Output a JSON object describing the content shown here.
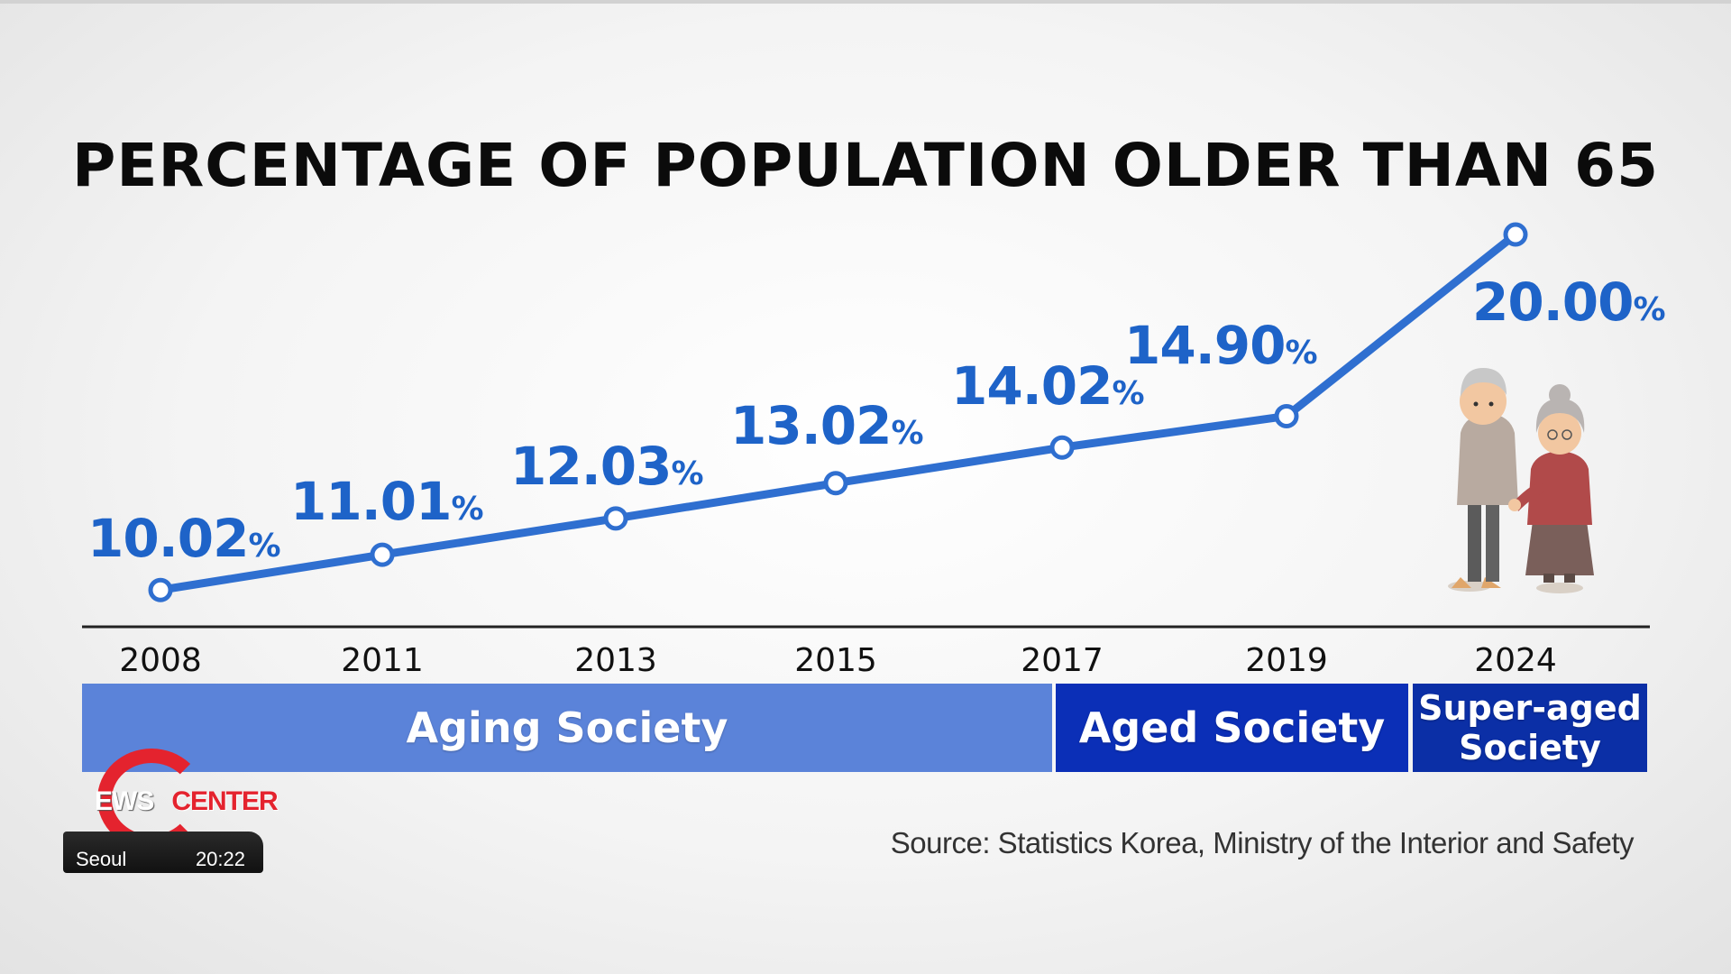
{
  "chart_data": {
    "type": "line",
    "title": "PERCENTAGE OF POPULATION OLDER THAN 65",
    "categories": [
      "2008",
      "2011",
      "2013",
      "2015",
      "2017",
      "2019",
      "2024"
    ],
    "series": [
      {
        "values": [
          10.02,
          11.01,
          12.03,
          13.02,
          14.02,
          14.9,
          20.0
        ],
        "labels": [
          "10.02",
          "11.01",
          "12.03",
          "13.02",
          "14.02",
          "14.90",
          "20.00"
        ]
      }
    ],
    "value_suffix": "%",
    "line_color": "#2f6fd0",
    "label_color": "#1e63c8",
    "grid": false,
    "ylim": [
      10,
      20
    ],
    "bands": [
      {
        "label": "Aging Society",
        "color": "#5b83d9"
      },
      {
        "label": "Aged Society",
        "color": "#0b2fb7"
      },
      {
        "label_line1": "Super-aged",
        "label_line2": "Society",
        "color": "#0b2fa6"
      }
    ]
  },
  "source": "Source: Statistics Korea, Ministry of the Interior and Safety",
  "logo": {
    "word_left": "EWS",
    "word_right": "CENTER",
    "city": "Seoul",
    "time": "20:22",
    "color": "#e4232e"
  },
  "illustration_icon": "elderly-couple-icon"
}
